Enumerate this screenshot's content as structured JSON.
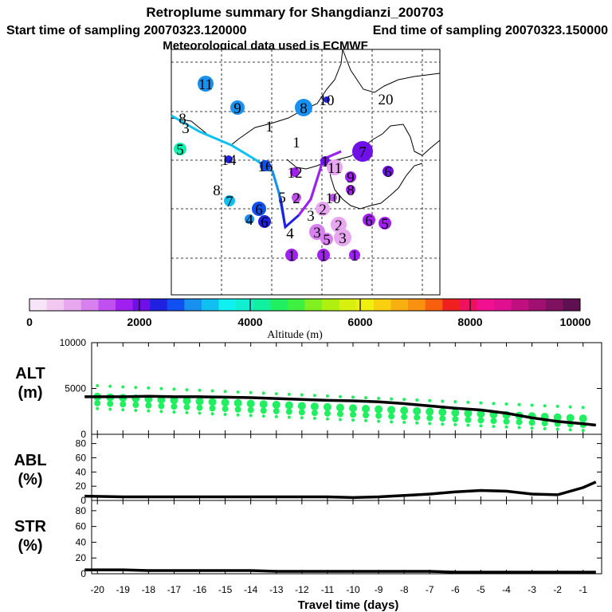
{
  "header": {
    "title": "Retroplume summary for Shangdianzi_200703",
    "start": "Start time of sampling 20070323.120000",
    "end": "End time of sampling 20070323.150000",
    "met": "Meteorological data used is ECMWF"
  },
  "colorbar": {
    "ticks": [
      "0",
      "2000",
      "4000",
      "6000",
      "8000",
      "10000"
    ],
    "label": "Altitude (m)",
    "colors": [
      "#f8e4f8",
      "#f0c8f0",
      "#e8a8f0",
      "#d880f0",
      "#c050f0",
      "#a020f0",
      "#7010e8",
      "#2020e0",
      "#1050f0",
      "#1890f0",
      "#10c0f0",
      "#10f0f0",
      "#10f0d0",
      "#10f0a0",
      "#20f060",
      "#40f040",
      "#80f020",
      "#b0f010",
      "#d8f010",
      "#f0f010",
      "#f8d010",
      "#f8b010",
      "#f89010",
      "#f86010",
      "#f02020",
      "#f01060",
      "#f01090",
      "#e01090",
      "#c01080",
      "#a01070",
      "#801060",
      "#601050"
    ]
  },
  "map_labels": [
    {
      "t": "11",
      "c": "#1890f0"
    },
    {
      "t": "9",
      "c": "#1890f0"
    },
    {
      "t": "8",
      "c": "#1890f0"
    },
    {
      "t": "10",
      "c": "#2020e0"
    },
    {
      "t": "20",
      "c": ""
    },
    {
      "t": "8",
      "c": ""
    },
    {
      "t": "3",
      "c": ""
    },
    {
      "t": "1",
      "c": ""
    },
    {
      "t": "5",
      "c": "#10f0b0"
    },
    {
      "t": "1",
      "c": ""
    },
    {
      "t": "7",
      "c": "#7010e8"
    },
    {
      "t": "14",
      "c": "#2020e0"
    },
    {
      "t": "1",
      "c": "#7010e8"
    },
    {
      "t": "16",
      "c": "#1050f0"
    },
    {
      "t": "12",
      "c": "#a020f0"
    },
    {
      "t": "11",
      "c": "#e8a8f0"
    },
    {
      "t": "6",
      "c": "#7010e8"
    },
    {
      "t": "9",
      "c": "#a020f0"
    },
    {
      "t": "8",
      "c": ""
    },
    {
      "t": "7",
      "c": "#10c0f0"
    },
    {
      "t": "5",
      "c": ""
    },
    {
      "t": "2",
      "c": "#c050f0"
    },
    {
      "t": "10",
      "c": "#c050f0"
    },
    {
      "t": "8",
      "c": "#a020f0"
    },
    {
      "t": "6",
      "c": "#1050f0"
    },
    {
      "t": "4",
      "c": "#1890f0"
    },
    {
      "t": "6",
      "c": "#2020e0"
    },
    {
      "t": "2",
      "c": "#e8a8f0"
    },
    {
      "t": "3",
      "c": ""
    },
    {
      "t": "2",
      "c": "#e8a8f0"
    },
    {
      "t": "6",
      "c": "#a020f0"
    },
    {
      "t": "5",
      "c": "#a020f0"
    },
    {
      "t": "3",
      "c": "#d880f0"
    },
    {
      "t": "5",
      "c": "#d880f0"
    },
    {
      "t": "3",
      "c": "#e8a8f0"
    },
    {
      "t": "4",
      "c": ""
    },
    {
      "t": "1",
      "c": "#a020f0"
    },
    {
      "t": "1",
      "c": "#a020f0"
    },
    {
      "t": "1",
      "c": "#a020f0"
    }
  ],
  "chart_data": [
    {
      "type": "line",
      "panel": "ALT",
      "ylabel": [
        "ALT",
        "(m)"
      ],
      "ylim": [
        0,
        10000
      ],
      "yticks": [
        "0",
        "5000",
        "10000"
      ],
      "x": [
        -20.5,
        -19,
        -18,
        -17,
        -16,
        -15,
        -14,
        -13,
        -12,
        -11,
        -10,
        -9,
        -8,
        -7,
        -6,
        -5,
        -4,
        -3,
        -2,
        -1,
        -0.5
      ],
      "values": [
        4100,
        4100,
        4150,
        4100,
        4100,
        4050,
        4000,
        3900,
        3800,
        3700,
        3650,
        3550,
        3350,
        3100,
        2850,
        2650,
        2300,
        1800,
        1400,
        1150,
        1000
      ],
      "scatter_color": "#20f060"
    },
    {
      "type": "line",
      "panel": "ABL",
      "ylabel": [
        "ABL",
        "(%)"
      ],
      "ylim": [
        0,
        90
      ],
      "yticks": [
        "0",
        "20",
        "40",
        "60",
        "80"
      ],
      "x": [
        -20.5,
        -19,
        -18,
        -17,
        -16,
        -15,
        -14,
        -13,
        -12,
        -11,
        -10,
        -9,
        -8,
        -7,
        -6,
        -5,
        -4,
        -3,
        -2,
        -1,
        -0.5
      ],
      "values": [
        6,
        5,
        5,
        5,
        5,
        5,
        5,
        5,
        5,
        5,
        4,
        5,
        7,
        9,
        12,
        14,
        13,
        9,
        8,
        18,
        26
      ]
    },
    {
      "type": "line",
      "panel": "STR",
      "ylabel": [
        "STR",
        "(%)"
      ],
      "ylim": [
        0,
        90
      ],
      "yticks": [
        "0",
        "20",
        "40",
        "60",
        "80"
      ],
      "x": [
        -20.5,
        -19,
        -18,
        -17,
        -16,
        -15,
        -14,
        -13,
        -12,
        -11,
        -10,
        -9,
        -8,
        -7,
        -6,
        -5,
        -4,
        -3,
        -2,
        -1,
        -0.5
      ],
      "values": [
        5,
        5,
        4,
        4,
        4,
        4,
        4,
        3,
        3,
        3,
        3,
        3,
        3,
        3,
        2,
        2,
        2,
        2,
        2,
        2,
        2
      ]
    }
  ],
  "xaxis": {
    "label": "Travel time (days)",
    "ticks": [
      "-20",
      "-19",
      "-18",
      "-17",
      "-16",
      "-15",
      "-14",
      "-13",
      "-12",
      "-11",
      "-10",
      "-9",
      "-8",
      "-7",
      "-6",
      "-5",
      "-4",
      "-3",
      "-2",
      "-1"
    ]
  }
}
